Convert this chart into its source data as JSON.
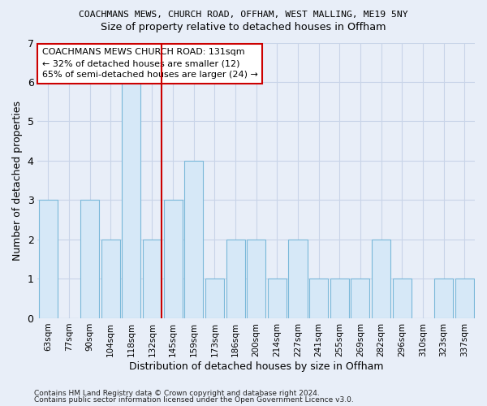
{
  "title1": "COACHMANS MEWS, CHURCH ROAD, OFFHAM, WEST MALLING, ME19 5NY",
  "title2": "Size of property relative to detached houses in Offham",
  "xlabel": "Distribution of detached houses by size in Offham",
  "ylabel": "Number of detached properties",
  "categories": [
    "63sqm",
    "77sqm",
    "90sqm",
    "104sqm",
    "118sqm",
    "132sqm",
    "145sqm",
    "159sqm",
    "173sqm",
    "186sqm",
    "200sqm",
    "214sqm",
    "227sqm",
    "241sqm",
    "255sqm",
    "269sqm",
    "282sqm",
    "296sqm",
    "310sqm",
    "323sqm",
    "337sqm"
  ],
  "values": [
    3,
    0,
    3,
    2,
    6,
    2,
    3,
    4,
    1,
    2,
    2,
    1,
    2,
    1,
    1,
    1,
    2,
    1,
    0,
    1,
    1
  ],
  "bar_color": "#d6e8f7",
  "bar_edge_color": "#7ab8d9",
  "highlight_index": 5,
  "highlight_line_color": "#cc0000",
  "annotation_text": "COACHMANS MEWS CHURCH ROAD: 131sqm\n← 32% of detached houses are smaller (12)\n65% of semi-detached houses are larger (24) →",
  "annotation_box_color": "white",
  "annotation_box_edge_color": "#cc0000",
  "footer1": "Contains HM Land Registry data © Crown copyright and database right 2024.",
  "footer2": "Contains public sector information licensed under the Open Government Licence v3.0.",
  "ylim": [
    0,
    7
  ],
  "yticks": [
    0,
    1,
    2,
    3,
    4,
    5,
    6,
    7
  ],
  "bg_color": "#e8eef8",
  "plot_bg_color": "#e8eef8",
  "grid_color": "#c8d4e8"
}
